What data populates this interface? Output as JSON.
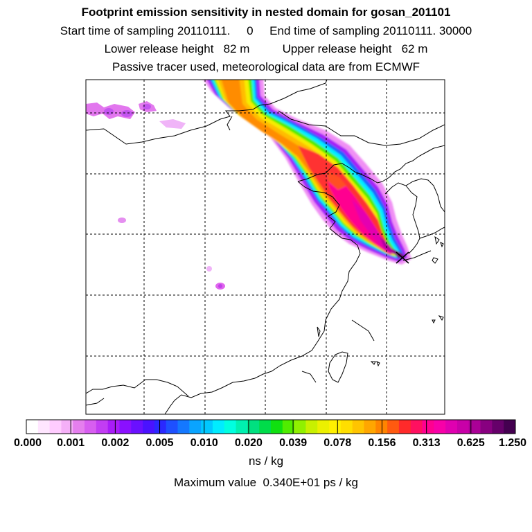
{
  "header": {
    "title": "Footprint emission sensitivity in nested domain for gosan_201101",
    "line2": "Start time of sampling 20110111.     0     End time of sampling 20110111. 30000",
    "line3": "Lower release height   82 m          Upper release height   62 m",
    "line4": "Passive tracer used, meteorological data are from ECMWF"
  },
  "colorbar": {
    "labels": [
      "0.000",
      "0.001",
      "0.002",
      "0.005",
      "0.010",
      "0.020",
      "0.039",
      "0.078",
      "0.156",
      "0.313",
      "0.625",
      "1.250"
    ],
    "colors": [
      "#ffffff",
      "#ffe6ff",
      "#ffccff",
      "#f5b0f8",
      "#e57fee",
      "#d75ef0",
      "#c23df3",
      "#a91cf8",
      "#8a10ff",
      "#6a10ff",
      "#4a12ff",
      "#2a28ff",
      "#1e50ff",
      "#1478ff",
      "#0aa4ff",
      "#00c8ff",
      "#00ecff",
      "#00ffe0",
      "#00f0b0",
      "#00e080",
      "#00dc4a",
      "#10e010",
      "#50ec00",
      "#90f000",
      "#c8f000",
      "#ecf000",
      "#fff000",
      "#ffde00",
      "#ffc400",
      "#ffa600",
      "#ff8400",
      "#ff5a10",
      "#ff2a2a",
      "#ff1060",
      "#ff0090",
      "#f800a8",
      "#e000b0",
      "#c800a8",
      "#aa0096",
      "#880080",
      "#66006a",
      "#440050"
    ],
    "unit_label": "ns / kg"
  },
  "map": {
    "site_name": "gosan",
    "marker_color": "#000000"
  },
  "footer": {
    "max_value": "Maximum value  0.340E+01 ps / kg"
  }
}
